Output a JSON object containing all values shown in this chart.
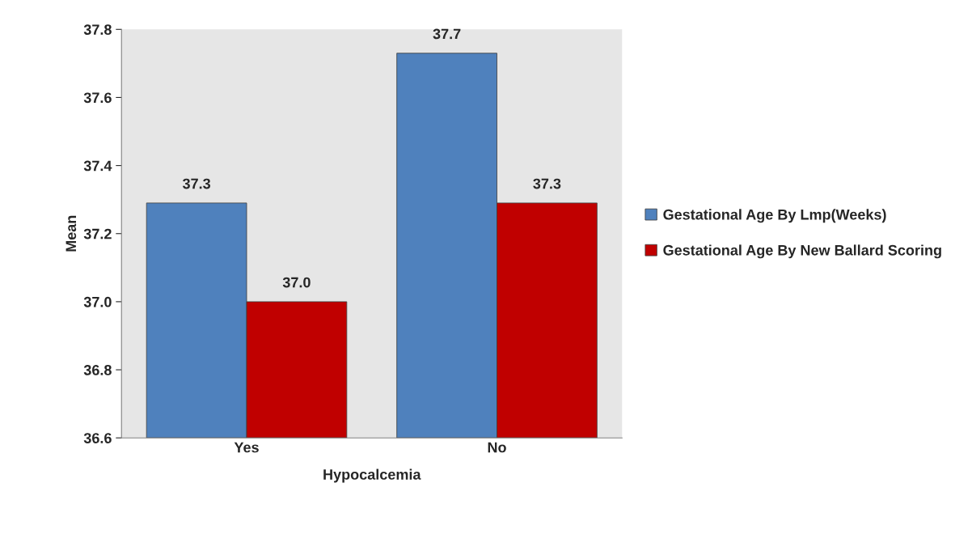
{
  "chart_data": {
    "type": "bar",
    "xlabel": "Hypocalcemia",
    "ylabel": "Mean",
    "categories": [
      "Yes",
      "No"
    ],
    "series": [
      {
        "name": "Gestational Age By Lmp(Weeks)",
        "color": "#4f81bd",
        "values": [
          37.29,
          37.73
        ],
        "value_labels": [
          "37.3",
          "37.7"
        ]
      },
      {
        "name": "Gestational Age By New Ballard Scoring",
        "color": "#c00000",
        "values": [
          37.0,
          37.29
        ],
        "value_labels": [
          "37.0",
          "37.3"
        ]
      }
    ],
    "ylim": [
      36.6,
      37.8
    ],
    "yticks": [
      36.6,
      36.8,
      {
        "value": 37.0,
        "label": "37.0"
      },
      37.2,
      37.4,
      37.6,
      37.8
    ],
    "grid": false,
    "legend": "right"
  }
}
